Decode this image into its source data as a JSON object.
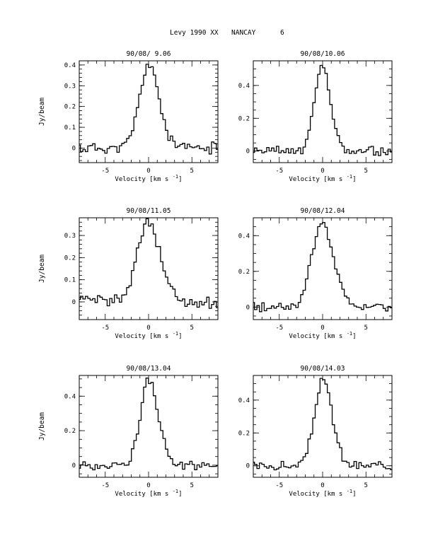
{
  "page_title": {
    "object": "Levy 1990 XX",
    "station": "NANCAY",
    "page_number": "6"
  },
  "chart_data": [
    {
      "type": "line",
      "title": "90/08/ 9.06",
      "xlabel": "Velocity [km s",
      "xlabel_exp": "-1",
      "xlabel_close": "]",
      "ylabel": "Jy/beam",
      "xlim": [
        -8,
        8
      ],
      "ylim": [
        -0.07,
        0.42
      ],
      "xticks": [
        -5,
        0,
        5
      ],
      "yticks": [
        0,
        0.1,
        0.2,
        0.3,
        0.4
      ],
      "ytick_labels": [
        "0",
        "0.1",
        "0.2",
        "0.3",
        "0.4"
      ],
      "grid": false,
      "peak": 0.4,
      "width": 1.1,
      "center": 0.0,
      "seed": 11
    },
    {
      "type": "line",
      "title": "90/08/10.06",
      "xlabel": "Velocity [km s",
      "xlabel_exp": "-1",
      "xlabel_close": "]",
      "ylabel": "",
      "xlim": [
        -8,
        8
      ],
      "ylim": [
        -0.07,
        0.55
      ],
      "xticks": [
        -5,
        0,
        5
      ],
      "yticks": [
        0,
        0.2,
        0.4
      ],
      "ytick_labels": [
        "0",
        "0.2",
        "0.4"
      ],
      "grid": false,
      "peak": 0.51,
      "width": 0.9,
      "center": -0.1,
      "seed": 23
    },
    {
      "type": "line",
      "title": "90/08/11.05",
      "xlabel": "Velocity [km s",
      "xlabel_exp": "-1",
      "xlabel_close": "]",
      "ylabel": "Jy/beam",
      "xlim": [
        -8,
        8
      ],
      "ylim": [
        -0.08,
        0.38
      ],
      "xticks": [
        -5,
        0,
        5
      ],
      "yticks": [
        0,
        0.1,
        0.2,
        0.3
      ],
      "ytick_labels": [
        "0",
        "0.1",
        "0.2",
        "0.3"
      ],
      "grid": false,
      "peak": 0.36,
      "width": 1.3,
      "center": -0.1,
      "seed": 37
    },
    {
      "type": "line",
      "title": "90/08/12.04",
      "xlabel": "Velocity [km s",
      "xlabel_exp": "-1",
      "xlabel_close": "]",
      "ylabel": "",
      "xlim": [
        -8,
        8
      ],
      "ylim": [
        -0.07,
        0.5
      ],
      "xticks": [
        -5,
        0,
        5
      ],
      "yticks": [
        0,
        0.2,
        0.4
      ],
      "ytick_labels": [
        "0",
        "0.2",
        "0.4"
      ],
      "grid": false,
      "peak": 0.47,
      "width": 1.2,
      "center": -0.1,
      "seed": 41
    },
    {
      "type": "line",
      "title": "90/08/13.04",
      "xlabel": "Velocity [km s",
      "xlabel_exp": "-1",
      "xlabel_close": "]",
      "ylabel": "Jy/beam",
      "xlim": [
        -8,
        8
      ],
      "ylim": [
        -0.07,
        0.52
      ],
      "xticks": [
        -5,
        0,
        5
      ],
      "yticks": [
        0,
        0.2,
        0.4
      ],
      "ytick_labels": [
        "0",
        "0.2",
        "0.4"
      ],
      "grid": false,
      "peak": 0.49,
      "width": 1.0,
      "center": 0.0,
      "seed": 53
    },
    {
      "type": "line",
      "title": "90/08/14.03",
      "xlabel": "Velocity [km s",
      "xlabel_exp": "-1",
      "xlabel_close": "]",
      "ylabel": "",
      "xlim": [
        -8,
        8
      ],
      "ylim": [
        -0.07,
        0.55
      ],
      "xticks": [
        -5,
        0,
        5
      ],
      "yticks": [
        0,
        0.2,
        0.4
      ],
      "ytick_labels": [
        "0",
        "0.2",
        "0.4"
      ],
      "grid": false,
      "peak": 0.52,
      "width": 1.0,
      "center": 0.0,
      "seed": 67
    }
  ]
}
